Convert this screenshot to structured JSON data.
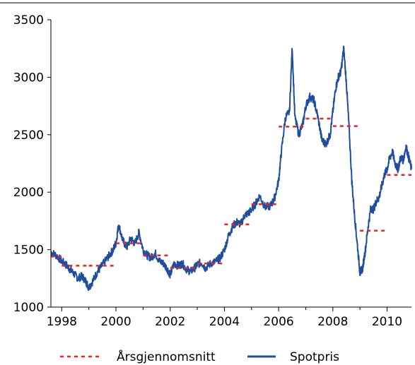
{
  "chart_data": {
    "type": "line",
    "title": "",
    "xlabel": "",
    "ylabel": "",
    "xlim": [
      1997.6,
      2010.9
    ],
    "ylim": [
      1000,
      3500
    ],
    "y_ticks": [
      1000,
      1500,
      2000,
      2500,
      3000,
      3500
    ],
    "x_ticks": [
      1998,
      2000,
      2002,
      2004,
      2006,
      2008,
      2010
    ],
    "grid": false,
    "legend_position": "bottom",
    "colors": {
      "spot": "#1f4e9e",
      "average": "#e8262a"
    },
    "series": [
      {
        "name": "Spotpris",
        "style": "solid",
        "x": [
          1997.6,
          1997.8,
          1998.0,
          1998.15,
          1998.3,
          1998.45,
          1998.6,
          1998.75,
          1998.9,
          1999.0,
          1999.15,
          1999.3,
          1999.45,
          1999.6,
          1999.75,
          1999.9,
          2000.0,
          2000.1,
          2000.25,
          2000.4,
          2000.55,
          2000.7,
          2000.85,
          2001.0,
          2001.15,
          2001.3,
          2001.45,
          2001.6,
          2001.75,
          2001.9,
          2002.0,
          2002.15,
          2002.3,
          2002.45,
          2002.6,
          2002.75,
          2002.9,
          2003.0,
          2003.15,
          2003.3,
          2003.5,
          2003.7,
          2003.85,
          2004.0,
          2004.15,
          2004.3,
          2004.45,
          2004.6,
          2004.75,
          2004.9,
          2005.0,
          2005.15,
          2005.3,
          2005.5,
          2005.7,
          2005.85,
          2006.0,
          2006.1,
          2006.25,
          2006.4,
          2006.5,
          2006.6,
          2006.75,
          2006.9,
          2007.0,
          2007.15,
          2007.3,
          2007.45,
          2007.6,
          2007.75,
          2007.9,
          2008.0,
          2008.1,
          2008.2,
          2008.3,
          2008.4,
          2008.5,
          2008.6,
          2008.7,
          2008.8,
          2008.9,
          2009.0,
          2009.1,
          2009.2,
          2009.3,
          2009.4,
          2009.5,
          2009.6,
          2009.7,
          2009.8,
          2009.9,
          2010.0,
          2010.1,
          2010.2,
          2010.3,
          2010.4,
          2010.5,
          2010.6,
          2010.7,
          2010.8,
          2010.9
        ],
        "values": [
          1480,
          1450,
          1400,
          1370,
          1330,
          1290,
          1250,
          1270,
          1220,
          1170,
          1230,
          1300,
          1350,
          1400,
          1450,
          1500,
          1560,
          1720,
          1580,
          1520,
          1600,
          1550,
          1650,
          1500,
          1450,
          1430,
          1470,
          1400,
          1380,
          1330,
          1280,
          1380,
          1360,
          1380,
          1330,
          1310,
          1340,
          1370,
          1390,
          1340,
          1380,
          1400,
          1430,
          1500,
          1620,
          1700,
          1740,
          1720,
          1800,
          1820,
          1850,
          1900,
          1970,
          1870,
          1880,
          1950,
          2100,
          2350,
          2650,
          2700,
          3260,
          2650,
          2500,
          2600,
          2750,
          2830,
          2800,
          2650,
          2450,
          2420,
          2500,
          2700,
          2900,
          3000,
          3050,
          3250,
          2950,
          2550,
          2100,
          1800,
          1550,
          1300,
          1340,
          1500,
          1700,
          1860,
          1850,
          1920,
          1950,
          2050,
          2150,
          2200,
          2300,
          2350,
          2250,
          2200,
          2300,
          2280,
          2400,
          2300,
          2200
        ]
      },
      {
        "name": "Årsgjennomsnitt",
        "style": "dashed",
        "segments": [
          {
            "x": [
              1997.6,
              1998.0
            ],
            "y": [
              1440,
              1440
            ]
          },
          {
            "x": [
              1998.0,
              1999.0
            ],
            "y": [
              1360,
              1360
            ]
          },
          {
            "x": [
              1999.0,
              2000.0
            ],
            "y": [
              1360,
              1360
            ]
          },
          {
            "x": [
              2000.0,
              2001.0
            ],
            "y": [
              1555,
              1555
            ]
          },
          {
            "x": [
              2001.0,
              2002.0
            ],
            "y": [
              1450,
              1450
            ]
          },
          {
            "x": [
              2002.0,
              2003.0
            ],
            "y": [
              1340,
              1340
            ]
          },
          {
            "x": [
              2003.0,
              2004.0
            ],
            "y": [
              1380,
              1380
            ]
          },
          {
            "x": [
              2004.0,
              2005.0
            ],
            "y": [
              1720,
              1720
            ]
          },
          {
            "x": [
              2005.0,
              2006.0
            ],
            "y": [
              1895,
              1895
            ]
          },
          {
            "x": [
              2006.0,
              2007.0
            ],
            "y": [
              2570,
              2570
            ]
          },
          {
            "x": [
              2007.0,
              2008.0
            ],
            "y": [
              2640,
              2640
            ]
          },
          {
            "x": [
              2008.0,
              2009.0
            ],
            "y": [
              2575,
              2575
            ]
          },
          {
            "x": [
              2009.0,
              2010.0
            ],
            "y": [
              1665,
              1665
            ]
          },
          {
            "x": [
              2010.0,
              2010.9
            ],
            "y": [
              2150,
              2150
            ]
          }
        ]
      }
    ],
    "legend": [
      {
        "label": "Årsgjennomsnitt",
        "style": "dashed",
        "color": "#e8262a"
      },
      {
        "label": "Spotpris",
        "style": "solid",
        "color": "#1f4e9e"
      }
    ]
  }
}
